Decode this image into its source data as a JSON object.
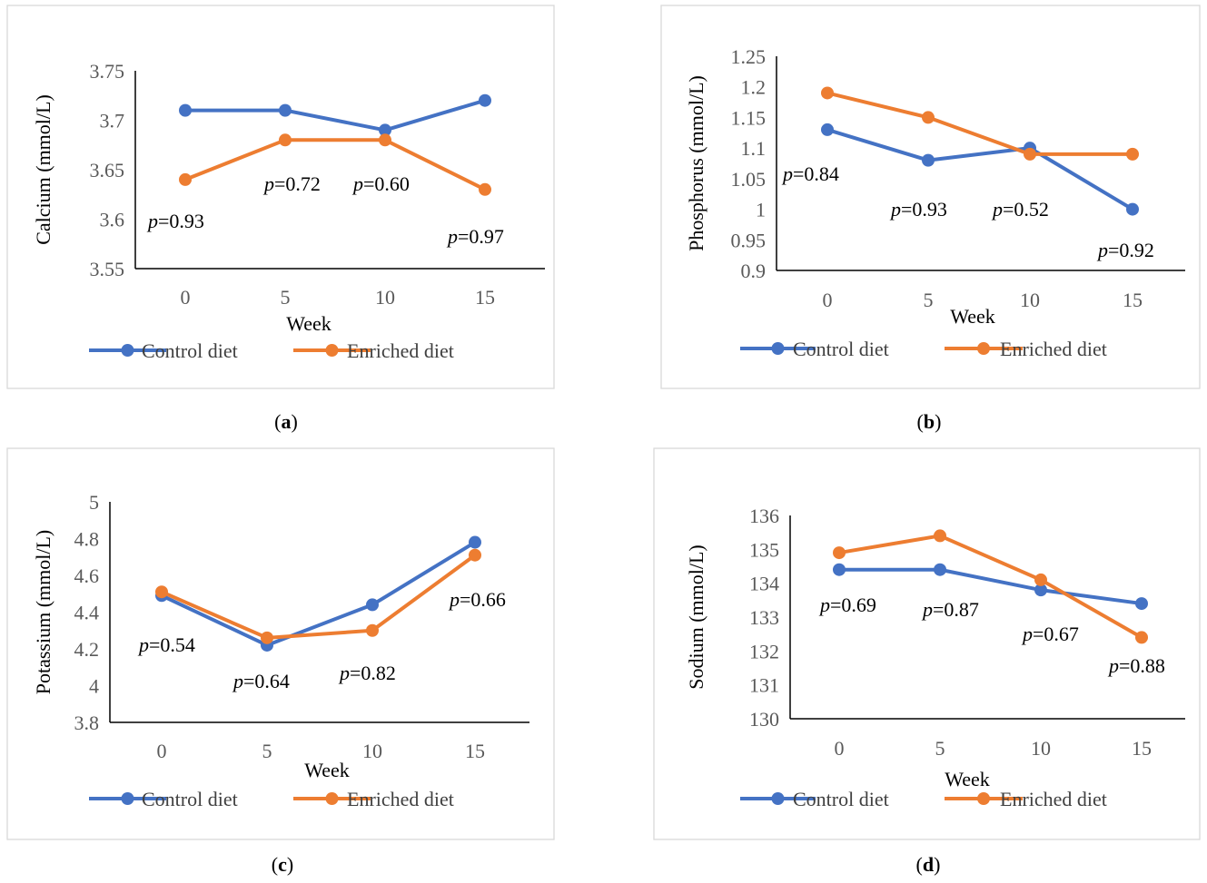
{
  "colors": {
    "control": "#4472C4",
    "enriched": "#ED7D31",
    "frame": "#D9D9D9",
    "axis": "#000000"
  },
  "chart_data": [
    {
      "panel": "a",
      "caption": "(a)",
      "type": "line",
      "xlabel": "Week",
      "ylabel": "Calcium (mmol/L)",
      "categories": [
        "0",
        "5",
        "10",
        "15"
      ],
      "ylim": [
        3.55,
        3.75
      ],
      "yticks": [
        "3.55",
        "3.6",
        "3.65",
        "3.7",
        "3.75"
      ],
      "series": [
        {
          "name": "Control diet",
          "values": [
            3.71,
            3.71,
            3.69,
            3.72
          ]
        },
        {
          "name": "Enriched diet",
          "values": [
            3.64,
            3.68,
            3.68,
            3.63
          ]
        }
      ],
      "pvalues": [
        "=0.93",
        "=0.72",
        "=0.60",
        "=0.97"
      ],
      "legend": "bottom"
    },
    {
      "panel": "b",
      "caption": "(b)",
      "type": "line",
      "xlabel": "Week",
      "ylabel": "Phosphorus (mmol/L)",
      "categories": [
        "0",
        "5",
        "10",
        "15"
      ],
      "ylim": [
        0.9,
        1.25
      ],
      "yticks": [
        "0.9",
        "0.95",
        "1",
        "1.05",
        "1.1",
        "1.15",
        "1.2",
        "1.25"
      ],
      "series": [
        {
          "name": "Control diet",
          "values": [
            1.13,
            1.08,
            1.1,
            1.0
          ]
        },
        {
          "name": "Enriched diet",
          "values": [
            1.19,
            1.15,
            1.09,
            1.09
          ]
        }
      ],
      "pvalues": [
        "=0.84",
        "=0.93",
        "=0.52",
        "=0.92"
      ],
      "legend": "bottom"
    },
    {
      "panel": "c",
      "caption": "(c)",
      "type": "line",
      "xlabel": "Week",
      "ylabel": "Potassium (mmol/L)",
      "categories": [
        "0",
        "5",
        "10",
        "15"
      ],
      "ylim": [
        3.8,
        5.0
      ],
      "yticks": [
        "3.8",
        "4",
        "4.2",
        "4.4",
        "4.6",
        "4.8",
        "5"
      ],
      "series": [
        {
          "name": "Control diet",
          "values": [
            4.49,
            4.22,
            4.44,
            4.78
          ]
        },
        {
          "name": "Enriched diet",
          "values": [
            4.51,
            4.26,
            4.3,
            4.71
          ]
        }
      ],
      "pvalues": [
        "=0.54",
        "=0.64",
        "=0.82",
        "=0.66"
      ],
      "legend": "bottom"
    },
    {
      "panel": "d",
      "caption": "(d)",
      "type": "line",
      "xlabel": "Week",
      "ylabel": "Sodium (mmol/L)",
      "categories": [
        "0",
        "5",
        "10",
        "15"
      ],
      "ylim": [
        130,
        136
      ],
      "yticks": [
        "130",
        "131",
        "132",
        "133",
        "134",
        "135",
        "136"
      ],
      "series": [
        {
          "name": "Control diet",
          "values": [
            134.4,
            134.4,
            133.8,
            133.4
          ]
        },
        {
          "name": "Enriched diet",
          "values": [
            134.9,
            135.4,
            134.1,
            132.4
          ]
        }
      ],
      "pvalues": [
        "=0.69",
        "=0.87",
        "=0.67",
        "=0.88"
      ],
      "legend": "bottom"
    }
  ],
  "p_symbol": "p"
}
